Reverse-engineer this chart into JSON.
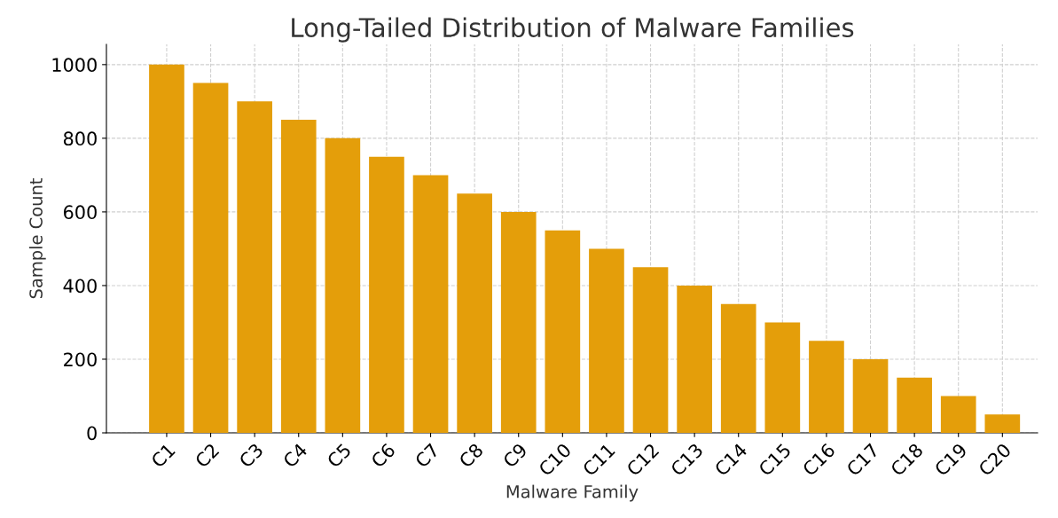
{
  "chart_data": {
    "type": "bar",
    "title": "Long-Tailed Distribution of Malware Families",
    "xlabel": "Malware Family",
    "ylabel": "Sample Count",
    "categories": [
      "C1",
      "C2",
      "C3",
      "C4",
      "C5",
      "C6",
      "C7",
      "C8",
      "C9",
      "C10",
      "C11",
      "C12",
      "C13",
      "C14",
      "C15",
      "C16",
      "C17",
      "C18",
      "C19",
      "C20"
    ],
    "values": [
      1000,
      950,
      900,
      850,
      800,
      750,
      700,
      650,
      600,
      550,
      500,
      450,
      400,
      350,
      300,
      250,
      200,
      150,
      100,
      50
    ],
    "color": "#e49e0a",
    "ylim": [
      0,
      1055
    ],
    "yticks": [
      0,
      200,
      400,
      600,
      800,
      1000
    ],
    "grid": true
  }
}
